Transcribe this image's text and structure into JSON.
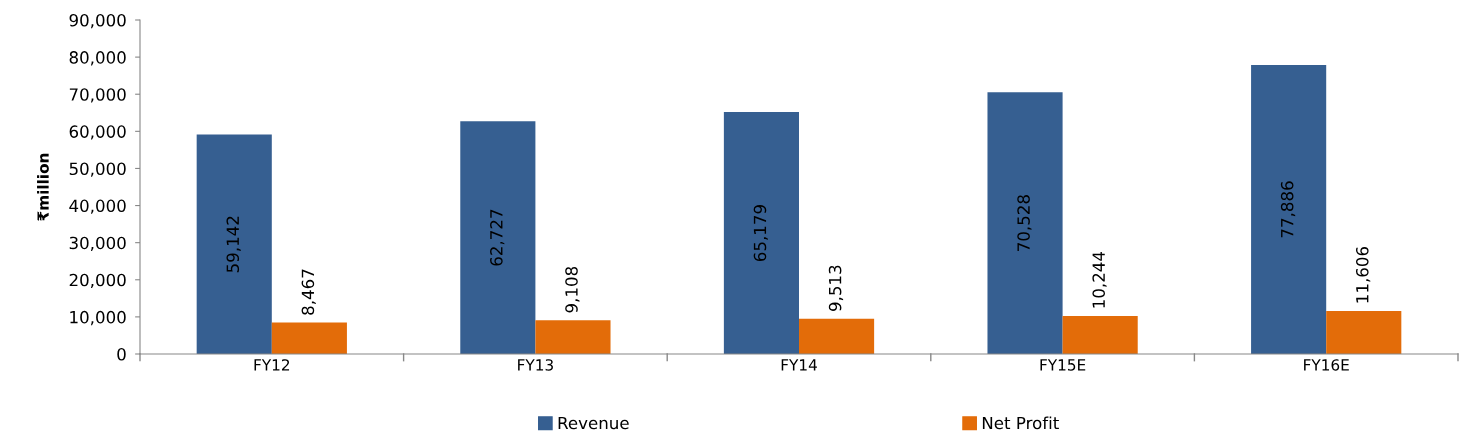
{
  "chart_data": {
    "type": "bar",
    "ylabel": "₹million",
    "categories": [
      "FY12",
      "FY13",
      "FY14",
      "FY15E",
      "FY16E"
    ],
    "series": [
      {
        "name": "Revenue",
        "color": "#365f91",
        "values": [
          59142,
          62727,
          65179,
          70528,
          77886
        ],
        "value_labels": [
          "59,142",
          "62,727",
          "65,179",
          "70,528",
          "77,886"
        ]
      },
      {
        "name": "Net Profit",
        "color": "#e36c09",
        "values": [
          8467,
          9108,
          9513,
          10244,
          11606
        ],
        "value_labels": [
          "8,467",
          "9,108",
          "9,513",
          "10,244",
          "11,606"
        ]
      }
    ],
    "ylim": [
      0,
      90000
    ],
    "yticks": [
      {
        "value": 0,
        "label": "0"
      },
      {
        "value": 10000,
        "label": "10,000"
      },
      {
        "value": 20000,
        "label": "20,000"
      },
      {
        "value": 30000,
        "label": "30,000"
      },
      {
        "value": 40000,
        "label": "40,000"
      },
      {
        "value": 50000,
        "label": "50,000"
      },
      {
        "value": 60000,
        "label": "60,000"
      },
      {
        "value": 70000,
        "label": "70,000"
      },
      {
        "value": 80000,
        "label": "80,000"
      },
      {
        "value": 90000,
        "label": "90,000"
      }
    ],
    "grid": false,
    "legend": "bottom"
  }
}
